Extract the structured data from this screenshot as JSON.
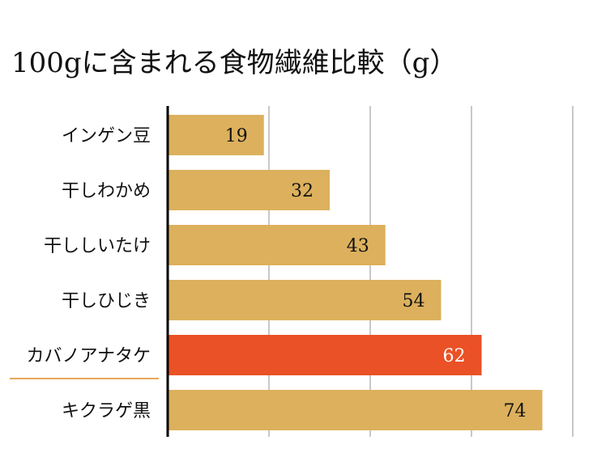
{
  "chart_data": {
    "type": "bar",
    "orientation": "horizontal",
    "title": "100gに含まれる食物繊維比較（g）",
    "categories": [
      "インゲン豆",
      "干しわかめ",
      "干ししいたけ",
      "干しひじき",
      "カバノアナタケ",
      "キクラゲ黒"
    ],
    "values": [
      19,
      32,
      43,
      54,
      62,
      74
    ],
    "highlight": "カバノアナタケ",
    "xlim": [
      0,
      80
    ],
    "grid": true,
    "legend": "none",
    "colors": {
      "bar": "#dcb05d",
      "highlight_bar": "#ea5126",
      "highlight_underline": "#e8a75a",
      "grid": "#c8c8c8",
      "axis": "#000000",
      "label_dark": "#111111",
      "label_light": "#ffffff"
    }
  }
}
